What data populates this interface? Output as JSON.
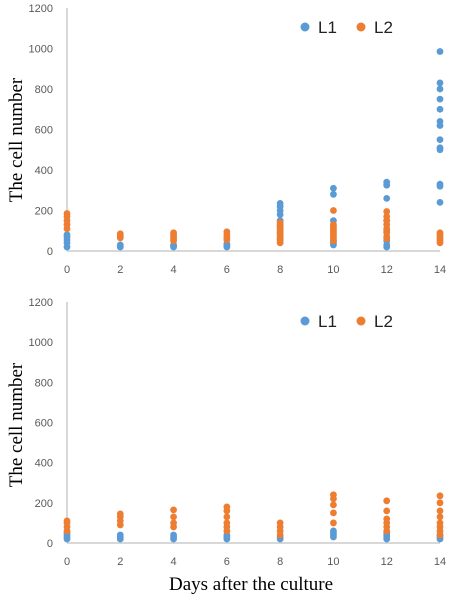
{
  "colors": {
    "L1": "#5b9bd5",
    "L2": "#ed7d31"
  },
  "shared_xlabel": "Days after the culture",
  "chart_data": [
    {
      "type": "scatter",
      "ylabel": "The cell number",
      "xlim": [
        0,
        14
      ],
      "ylim": [
        0,
        1200
      ],
      "xticks": [
        "0",
        "2",
        "4",
        "6",
        "8",
        "10",
        "12",
        "14"
      ],
      "yticks": [
        "0",
        "200",
        "400",
        "600",
        "800",
        "1000",
        "1200"
      ],
      "grid": false,
      "legend": "top-right",
      "series": [
        {
          "name": "L1",
          "color": "#5b9bd5",
          "points": [
            [
              0,
              20
            ],
            [
              0,
              40
            ],
            [
              0,
              55
            ],
            [
              0,
              70
            ],
            [
              0,
              80
            ],
            [
              2,
              20
            ],
            [
              2,
              25
            ],
            [
              2,
              30
            ],
            [
              4,
              20
            ],
            [
              4,
              25
            ],
            [
              4,
              30
            ],
            [
              6,
              20
            ],
            [
              6,
              25
            ],
            [
              6,
              30
            ],
            [
              6,
              35
            ],
            [
              8,
              60
            ],
            [
              8,
              90
            ],
            [
              8,
              120
            ],
            [
              8,
              150
            ],
            [
              8,
              180
            ],
            [
              8,
              200
            ],
            [
              8,
              220
            ],
            [
              8,
              235
            ],
            [
              10,
              30
            ],
            [
              10,
              40
            ],
            [
              10,
              50
            ],
            [
              10,
              150
            ],
            [
              10,
              280
            ],
            [
              10,
              310
            ],
            [
              12,
              20
            ],
            [
              12,
              30
            ],
            [
              12,
              50
            ],
            [
              12,
              100
            ],
            [
              12,
              150
            ],
            [
              12,
              260
            ],
            [
              12,
              325
            ],
            [
              12,
              340
            ],
            [
              14,
              240
            ],
            [
              14,
              320
            ],
            [
              14,
              330
            ],
            [
              14,
              500
            ],
            [
              14,
              510
            ],
            [
              14,
              550
            ],
            [
              14,
              620
            ],
            [
              14,
              640
            ],
            [
              14,
              700
            ],
            [
              14,
              750
            ],
            [
              14,
              800
            ],
            [
              14,
              830
            ],
            [
              14,
              985
            ]
          ]
        },
        {
          "name": "L2",
          "color": "#ed7d31",
          "points": [
            [
              0,
              110
            ],
            [
              0,
              130
            ],
            [
              0,
              150
            ],
            [
              0,
              170
            ],
            [
              0,
              185
            ],
            [
              2,
              65
            ],
            [
              2,
              75
            ],
            [
              2,
              85
            ],
            [
              4,
              50
            ],
            [
              4,
              60
            ],
            [
              4,
              70
            ],
            [
              4,
              80
            ],
            [
              4,
              90
            ],
            [
              6,
              55
            ],
            [
              6,
              65
            ],
            [
              6,
              80
            ],
            [
              6,
              95
            ],
            [
              8,
              40
            ],
            [
              8,
              50
            ],
            [
              8,
              60
            ],
            [
              8,
              70
            ],
            [
              8,
              80
            ],
            [
              8,
              90
            ],
            [
              8,
              100
            ],
            [
              8,
              110
            ],
            [
              8,
              120
            ],
            [
              8,
              130
            ],
            [
              8,
              140
            ],
            [
              10,
              50
            ],
            [
              10,
              60
            ],
            [
              10,
              70
            ],
            [
              10,
              80
            ],
            [
              10,
              90
            ],
            [
              10,
              100
            ],
            [
              10,
              110
            ],
            [
              10,
              120
            ],
            [
              10,
              130
            ],
            [
              10,
              200
            ],
            [
              12,
              60
            ],
            [
              12,
              70
            ],
            [
              12,
              90
            ],
            [
              12,
              110
            ],
            [
              12,
              130
            ],
            [
              12,
              150
            ],
            [
              12,
              170
            ],
            [
              12,
              195
            ],
            [
              14,
              40
            ],
            [
              14,
              50
            ],
            [
              14,
              60
            ],
            [
              14,
              70
            ],
            [
              14,
              80
            ],
            [
              14,
              90
            ]
          ]
        }
      ]
    },
    {
      "type": "scatter",
      "ylabel": "The cell number",
      "xlim": [
        0,
        14
      ],
      "ylim": [
        0,
        1200
      ],
      "xticks": [
        "0",
        "2",
        "4",
        "6",
        "8",
        "10",
        "12",
        "14"
      ],
      "yticks": [
        "0",
        "200",
        "400",
        "600",
        "800",
        "1000",
        "1200"
      ],
      "grid": false,
      "legend": "top-right",
      "series": [
        {
          "name": "L1",
          "color": "#5b9bd5",
          "points": [
            [
              0,
              20
            ],
            [
              0,
              30
            ],
            [
              0,
              40
            ],
            [
              0,
              50
            ],
            [
              2,
              20
            ],
            [
              2,
              30
            ],
            [
              2,
              40
            ],
            [
              4,
              20
            ],
            [
              4,
              30
            ],
            [
              4,
              40
            ],
            [
              6,
              20
            ],
            [
              6,
              30
            ],
            [
              6,
              40
            ],
            [
              8,
              20
            ],
            [
              8,
              30
            ],
            [
              10,
              30
            ],
            [
              10,
              40
            ],
            [
              10,
              50
            ],
            [
              10,
              60
            ],
            [
              12,
              20
            ],
            [
              12,
              30
            ],
            [
              12,
              40
            ],
            [
              12,
              50
            ],
            [
              14,
              20
            ],
            [
              14,
              30
            ],
            [
              14,
              40
            ]
          ]
        },
        {
          "name": "L2",
          "color": "#ed7d31",
          "points": [
            [
              0,
              60
            ],
            [
              0,
              80
            ],
            [
              0,
              100
            ],
            [
              0,
              110
            ],
            [
              2,
              90
            ],
            [
              2,
              110
            ],
            [
              2,
              130
            ],
            [
              2,
              145
            ],
            [
              4,
              80
            ],
            [
              4,
              100
            ],
            [
              4,
              130
            ],
            [
              4,
              165
            ],
            [
              6,
              60
            ],
            [
              6,
              80
            ],
            [
              6,
              100
            ],
            [
              6,
              130
            ],
            [
              6,
              160
            ],
            [
              6,
              180
            ],
            [
              8,
              40
            ],
            [
              8,
              60
            ],
            [
              8,
              80
            ],
            [
              8,
              100
            ],
            [
              10,
              100
            ],
            [
              10,
              150
            ],
            [
              10,
              190
            ],
            [
              10,
              220
            ],
            [
              10,
              240
            ],
            [
              12,
              60
            ],
            [
              12,
              80
            ],
            [
              12,
              100
            ],
            [
              12,
              120
            ],
            [
              12,
              160
            ],
            [
              12,
              210
            ],
            [
              14,
              40
            ],
            [
              14,
              60
            ],
            [
              14,
              80
            ],
            [
              14,
              100
            ],
            [
              14,
              130
            ],
            [
              14,
              160
            ],
            [
              14,
              200
            ],
            [
              14,
              235
            ]
          ]
        }
      ]
    }
  ]
}
